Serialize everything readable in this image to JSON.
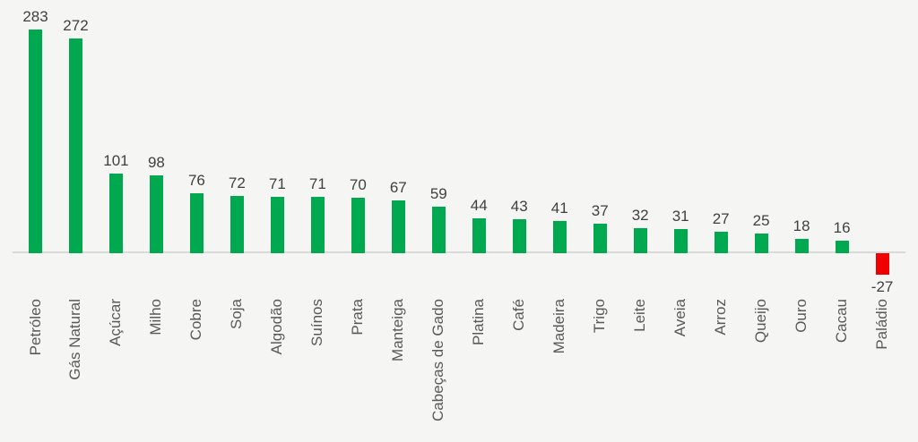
{
  "chart_data": {
    "type": "bar",
    "title": "",
    "xlabel": "",
    "ylabel": "",
    "categories": [
      "Petróleo",
      "Gás Natural",
      "Açúcar",
      "Milho",
      "Cobre",
      "Soja",
      "Algodão",
      "Suínos",
      "Prata",
      "Manteiga",
      "Cabeças de Gado",
      "Platina",
      "Café",
      "Madeira",
      "Trigo",
      "Leite",
      "Aveia",
      "Arroz",
      "Queijo",
      "Ouro",
      "Cacau",
      "Paládio"
    ],
    "values": [
      283,
      272,
      101,
      98,
      76,
      72,
      71,
      71,
      70,
      67,
      59,
      44,
      43,
      41,
      37,
      32,
      31,
      27,
      25,
      18,
      16,
      -27
    ],
    "value_labels_shown": true,
    "ylim": [
      -50,
      320
    ],
    "grid": false,
    "legend": null,
    "colors": {
      "bar_positive": "#00a94f",
      "bar_negative": "#f00000",
      "value_label": "#404040",
      "category_label": "#595959",
      "axis_line": "#d9d9d9",
      "background": "#f5f5f3"
    }
  }
}
